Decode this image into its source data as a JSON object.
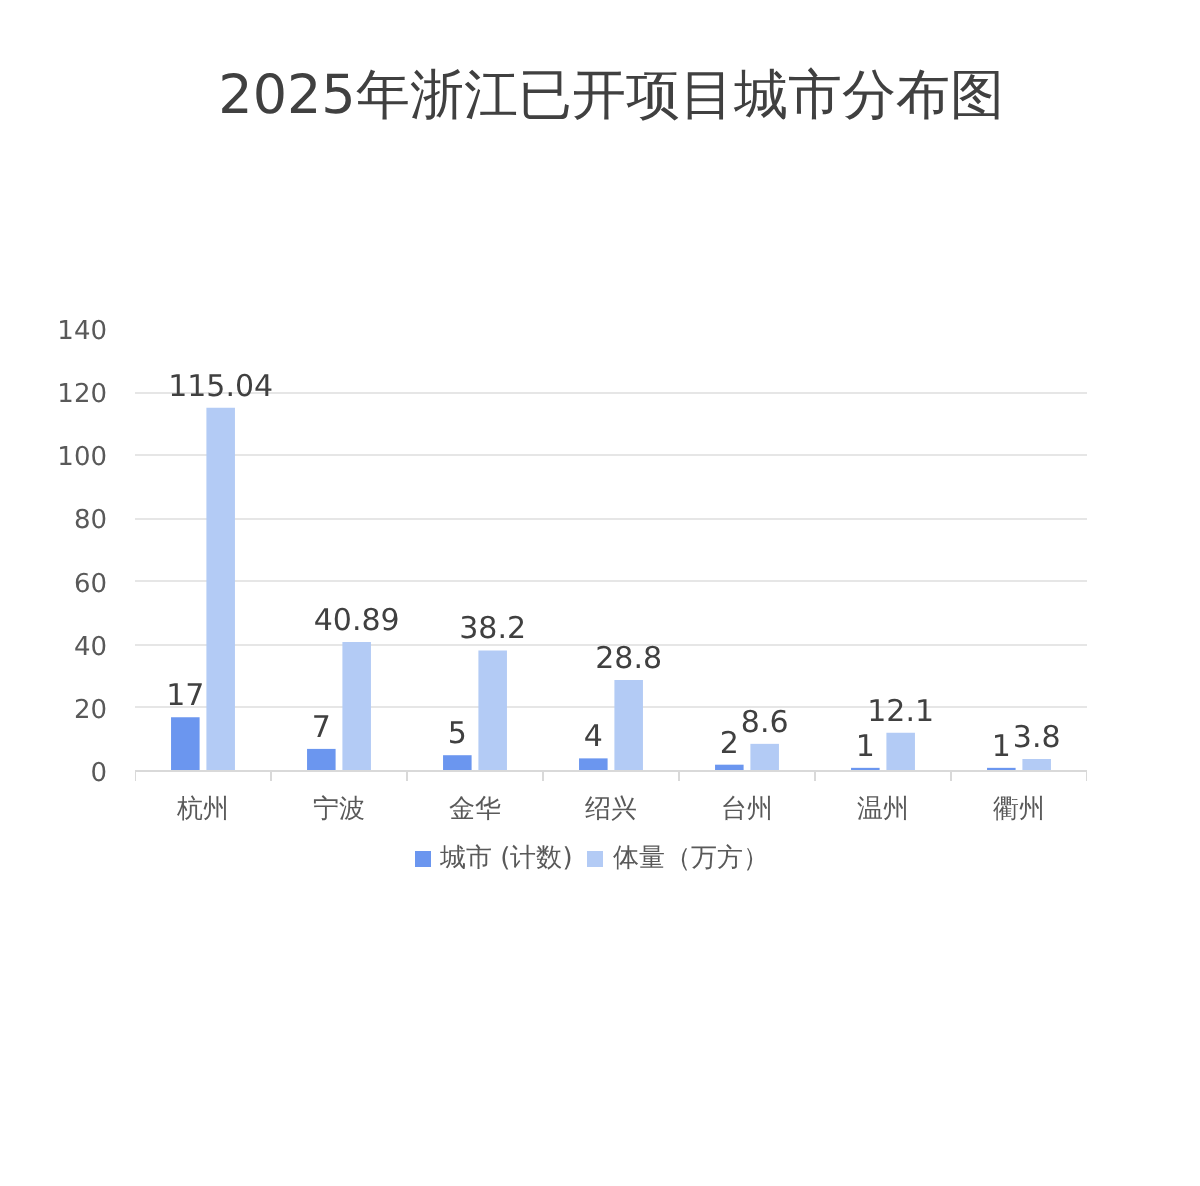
{
  "chart_data": {
    "type": "bar",
    "title": "2025年浙江已开项目城市分布图",
    "categories": [
      "杭州",
      "宁波",
      "金华",
      "绍兴",
      "台州",
      "温州",
      "衢州"
    ],
    "series": [
      {
        "name": "城市 (计数)",
        "color": "#6b96ef",
        "values": [
          17,
          7,
          5,
          4,
          2,
          1,
          1
        ]
      },
      {
        "name": "体量（万方）",
        "color": "#b3cbf5",
        "values": [
          115.04,
          40.89,
          38.2,
          28.8,
          8.6,
          12.1,
          3.8
        ]
      }
    ],
    "ylim": [
      0,
      140
    ],
    "yticks": [
      0,
      20,
      40,
      60,
      80,
      100,
      120,
      140
    ],
    "grid": "y",
    "legend": "bottom",
    "data_labels": true
  }
}
